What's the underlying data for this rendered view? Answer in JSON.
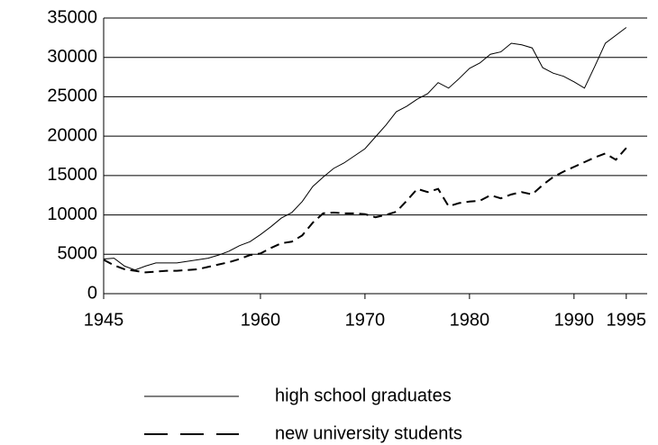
{
  "chart_data": {
    "type": "line",
    "x": [
      1945,
      1946,
      1947,
      1948,
      1949,
      1950,
      1951,
      1952,
      1953,
      1954,
      1955,
      1956,
      1957,
      1958,
      1959,
      1960,
      1961,
      1962,
      1963,
      1964,
      1965,
      1966,
      1967,
      1968,
      1969,
      1970,
      1971,
      1972,
      1973,
      1974,
      1975,
      1976,
      1977,
      1978,
      1979,
      1980,
      1981,
      1982,
      1983,
      1984,
      1985,
      1986,
      1987,
      1988,
      1989,
      1990,
      1991,
      1992,
      1993,
      1994,
      1995
    ],
    "series": [
      {
        "name": "high school graduates",
        "color": "#000000",
        "dash": false,
        "values": [
          4400,
          4500,
          3500,
          3000,
          3500,
          3900,
          3900,
          3900,
          4100,
          4300,
          4500,
          4900,
          5400,
          6100,
          6600,
          7500,
          8500,
          9600,
          10300,
          11700,
          13600,
          14800,
          15900,
          16600,
          17500,
          18400,
          19900,
          21400,
          23100,
          23800,
          24700,
          25400,
          26800,
          26100,
          27300,
          28600,
          29300,
          30400,
          30700,
          31800,
          31600,
          31200,
          28700,
          28000,
          27600,
          26900,
          26100,
          28900,
          31800,
          32800,
          33800
        ]
      },
      {
        "name": "new university students",
        "color": "#000000",
        "dash": true,
        "values": [
          4300,
          3600,
          3100,
          2900,
          2700,
          2800,
          2900,
          2900,
          3000,
          3100,
          3400,
          3700,
          4000,
          4400,
          4900,
          5100,
          5800,
          6400,
          6600,
          7400,
          9000,
          10200,
          10300,
          10200,
          10200,
          10100,
          9700,
          10000,
          10400,
          11800,
          13300,
          12900,
          13300,
          11100,
          11500,
          11700,
          11800,
          12500,
          12100,
          12600,
          12900,
          12600,
          13800,
          14800,
          15500,
          16100,
          16700,
          17300,
          17800,
          17000,
          18500
        ]
      }
    ],
    "xlim": [
      1945,
      1997
    ],
    "xticks": [
      1945,
      1960,
      1970,
      1980,
      1990,
      1995
    ],
    "ylim": [
      0,
      35000
    ],
    "yticks": [
      0,
      5000,
      10000,
      15000,
      20000,
      25000,
      30000,
      35000
    ],
    "grid": true
  }
}
